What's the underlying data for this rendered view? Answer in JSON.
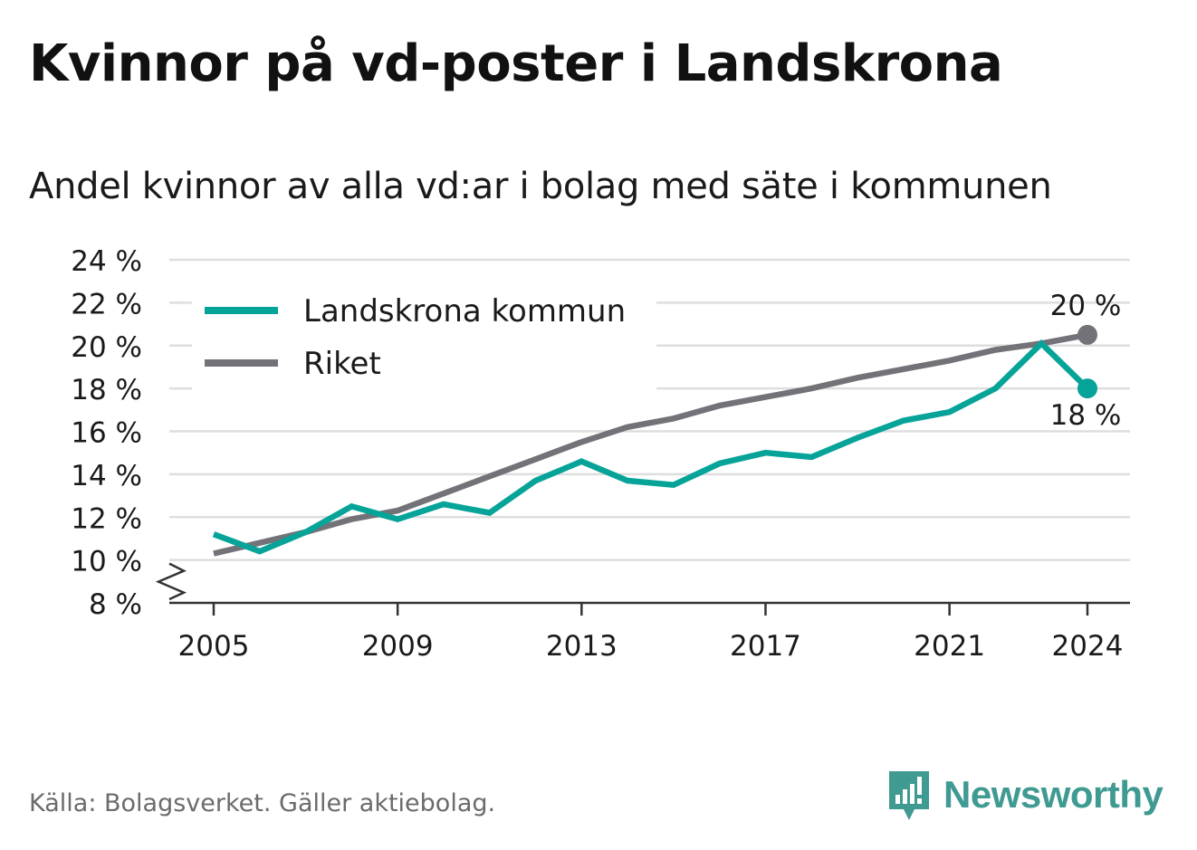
{
  "title": "Kvinnor på vd-poster i Landskrona",
  "subtitle": "Andel kvinnor av alla vd:ar i bolag med säte i kommunen",
  "source": "Källa: Bolagsverket. Gäller aktiebolag.",
  "brand": {
    "name": "Newsworthy",
    "icon": "newsworthy-logo-icon"
  },
  "colors": {
    "landskrona": "#06a399",
    "riket": "#737278",
    "grid": "#dedede",
    "axis": "#333333",
    "text": "#1a1a1a"
  },
  "chart_data": {
    "type": "line",
    "title": "Kvinnor på vd-poster i Landskrona",
    "subtitle": "Andel kvinnor av alla vd:ar i bolag med säte i kommunen",
    "x": [
      2005,
      2006,
      2007,
      2008,
      2009,
      2010,
      2011,
      2012,
      2013,
      2014,
      2015,
      2016,
      2017,
      2018,
      2019,
      2020,
      2021,
      2022,
      2023,
      2024
    ],
    "x_ticks": [
      2005,
      2009,
      2013,
      2017,
      2021,
      2024
    ],
    "y_ticks": [
      8,
      10,
      12,
      14,
      16,
      18,
      20,
      22,
      24
    ],
    "y_tick_suffix": " %",
    "ylim": [
      8,
      24
    ],
    "axis_break": true,
    "grid": true,
    "legend_position": "top-left",
    "series": [
      {
        "name": "Landskrona kommun",
        "color": "#06a399",
        "values": [
          11.2,
          10.4,
          11.3,
          12.5,
          11.9,
          12.6,
          12.2,
          13.7,
          14.6,
          13.7,
          13.5,
          14.5,
          15.0,
          14.8,
          15.7,
          16.5,
          16.9,
          18.0,
          20.1,
          18.0
        ],
        "end_label": "18 %"
      },
      {
        "name": "Riket",
        "color": "#737278",
        "values": [
          10.3,
          10.8,
          11.3,
          11.9,
          12.3,
          13.1,
          13.9,
          14.7,
          15.5,
          16.2,
          16.6,
          17.2,
          17.6,
          18.0,
          18.5,
          18.9,
          19.3,
          19.8,
          20.1,
          20.5
        ],
        "end_label": "20 %"
      }
    ]
  }
}
